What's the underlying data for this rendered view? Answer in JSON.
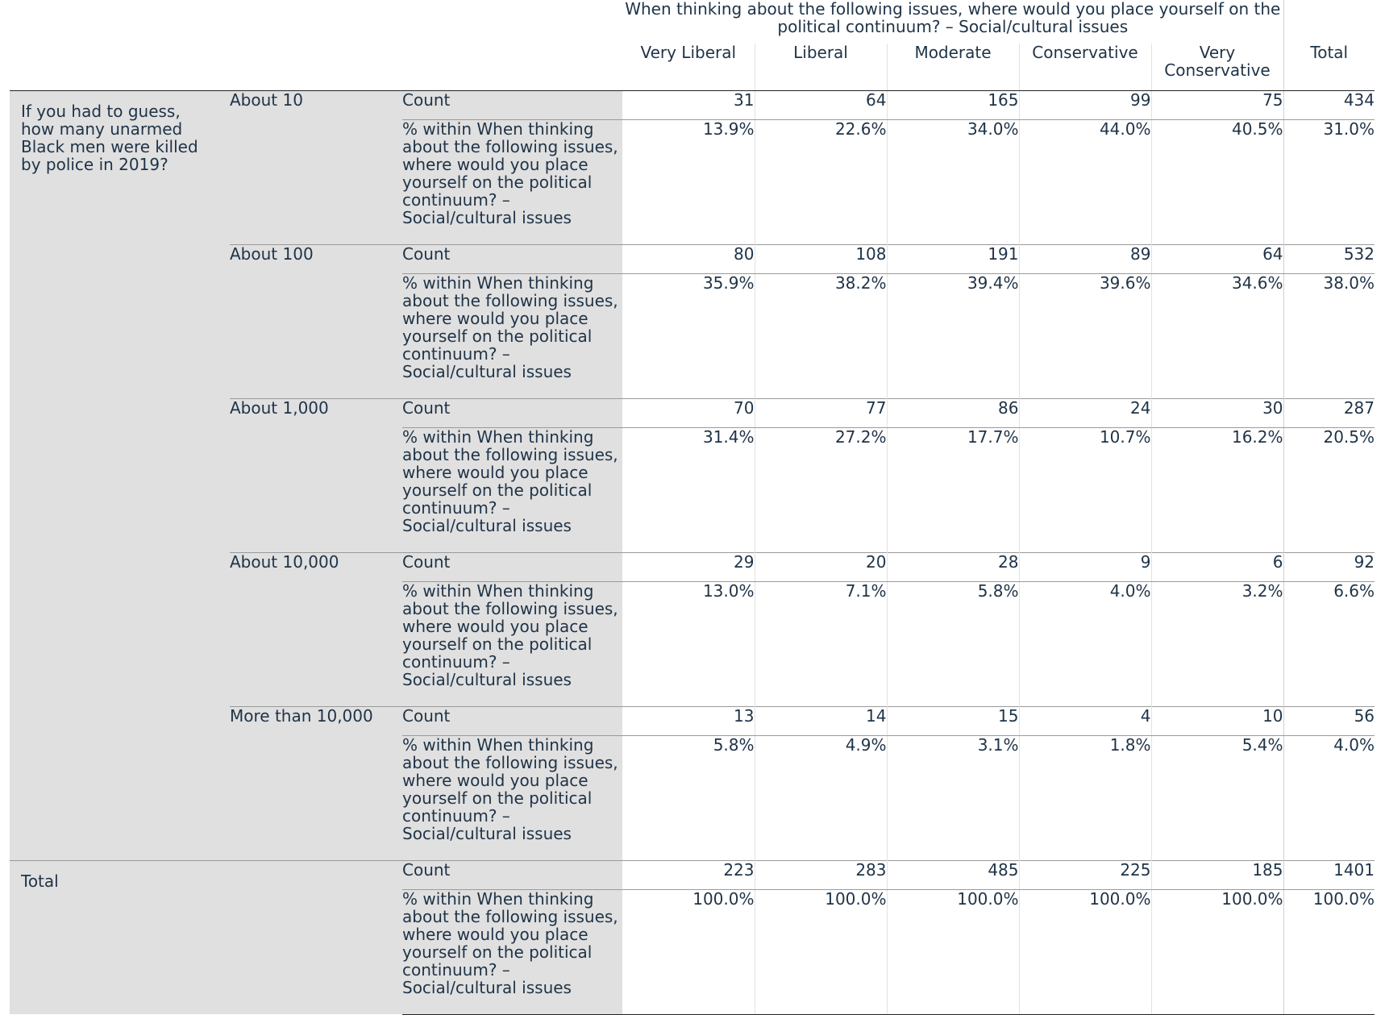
{
  "column_header": {
    "title": "When thinking about the following issues, where would you place yourself on the political continuum? – Social/cultural issues",
    "columns": [
      "Very Liberal",
      "Liberal",
      "Moderate",
      "Conservative",
      "Very Conservative",
      "Total"
    ]
  },
  "row_header": {
    "question": "If you had to guess, how many unarmed Black men were killed by police in 2019?",
    "total_label": "Total"
  },
  "stats": {
    "count_label": "Count",
    "pct_label": "% within When thinking about the following issues, where would you place yourself on the political continuum? – Social/cultural issues"
  },
  "groups": [
    {
      "label": "About 10",
      "counts": [
        "31",
        "64",
        "165",
        "99",
        "75",
        "434"
      ],
      "pcts": [
        "13.9%",
        "22.6%",
        "34.0%",
        "44.0%",
        "40.5%",
        "31.0%"
      ]
    },
    {
      "label": "About 100",
      "counts": [
        "80",
        "108",
        "191",
        "89",
        "64",
        "532"
      ],
      "pcts": [
        "35.9%",
        "38.2%",
        "39.4%",
        "39.6%",
        "34.6%",
        "38.0%"
      ]
    },
    {
      "label": "About 1,000",
      "counts": [
        "70",
        "77",
        "86",
        "24",
        "30",
        "287"
      ],
      "pcts": [
        "31.4%",
        "27.2%",
        "17.7%",
        "10.7%",
        "16.2%",
        "20.5%"
      ]
    },
    {
      "label": "About 10,000",
      "counts": [
        "29",
        "20",
        "28",
        "9",
        "6",
        "92"
      ],
      "pcts": [
        "13.0%",
        "7.1%",
        "5.8%",
        "4.0%",
        "3.2%",
        "6.6%"
      ]
    },
    {
      "label": "More than 10,000",
      "counts": [
        "13",
        "14",
        "15",
        "4",
        "10",
        "56"
      ],
      "pcts": [
        "5.8%",
        "4.9%",
        "3.1%",
        "1.8%",
        "5.4%",
        "4.0%"
      ]
    }
  ],
  "total": {
    "counts": [
      "223",
      "283",
      "485",
      "225",
      "185",
      "1401"
    ],
    "pcts": [
      "100.0%",
      "100.0%",
      "100.0%",
      "100.0%",
      "100.0%",
      "100.0%"
    ]
  }
}
